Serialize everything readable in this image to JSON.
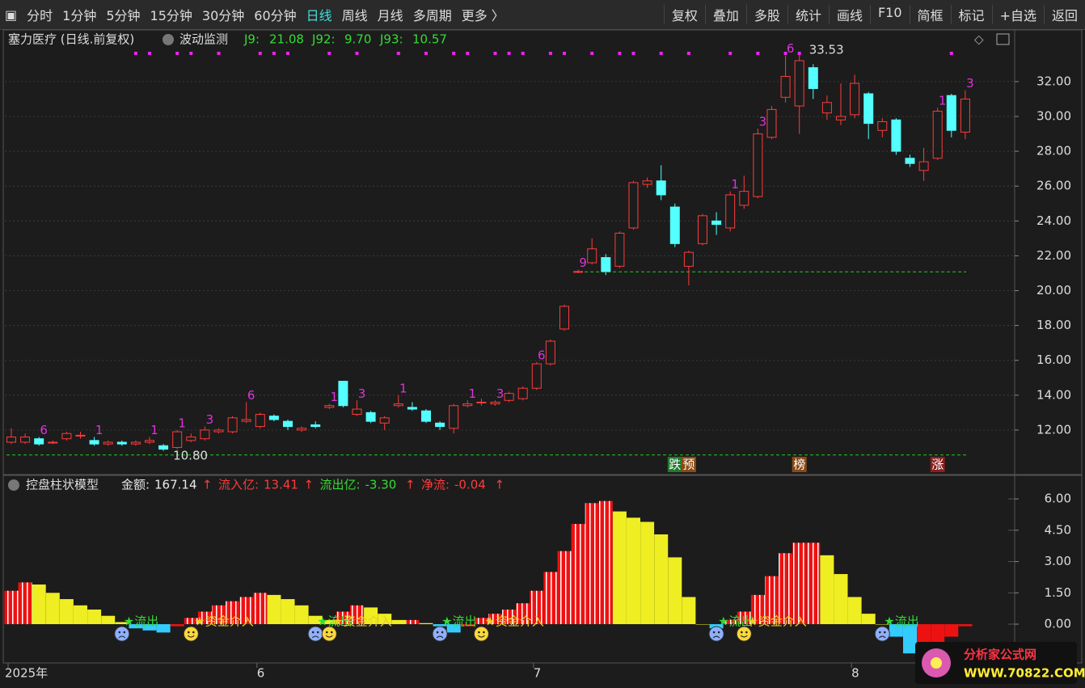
{
  "toolbar": {
    "left": [
      "分时",
      "1分钟",
      "5分钟",
      "15分钟",
      "30分钟",
      "60分钟",
      "日线",
      "周线",
      "月线",
      "多周期",
      "更多 〉"
    ],
    "active": "日线",
    "right": [
      "复权",
      "叠加",
      "多股",
      "统计",
      "画线",
      "F10",
      "简框",
      "标记",
      "+自选",
      "返回"
    ]
  },
  "chart_data": [
    {
      "type": "candlestick",
      "title": "塞力医疗 (日线.前复权)",
      "indicator": "波动监测",
      "indicators": [
        {
          "name": "J9:",
          "value": 21.08,
          "color": "#33dd33"
        },
        {
          "name": "J92:",
          "value": 9.7,
          "label": "9.70",
          "color": "#33dd33"
        },
        {
          "name": "J93:",
          "value": 10.57,
          "color": "#33dd33"
        }
      ],
      "categories": [
        "2025年",
        null,
        null,
        null,
        null,
        null,
        null,
        null,
        null,
        null,
        null,
        null,
        null,
        null,
        null,
        null,
        null,
        null,
        "6",
        null,
        null,
        null,
        null,
        null,
        null,
        null,
        null,
        null,
        null,
        null,
        null,
        null,
        null,
        null,
        null,
        null,
        null,
        null,
        "7",
        null,
        null,
        null,
        null,
        null,
        null,
        null,
        null,
        null,
        null,
        null,
        null,
        null,
        null,
        null,
        null,
        null,
        null,
        null,
        null,
        null,
        null,
        "8",
        null,
        null,
        null,
        null,
        null,
        null,
        null,
        null
      ],
      "open": [
        11.3,
        11.3,
        11.5,
        11.3,
        11.5,
        11.7,
        11.4,
        11.2,
        11.3,
        11.2,
        11.3,
        11.1,
        11.0,
        11.4,
        11.5,
        11.9,
        11.9,
        12.5,
        12.2,
        12.8,
        12.5,
        12.0,
        12.3,
        13.3,
        14.8,
        12.9,
        13.0,
        12.4,
        13.4,
        13.3,
        13.1,
        12.4,
        12.1,
        13.4,
        13.6,
        13.5,
        13.7,
        13.8,
        14.4,
        15.8,
        17.8,
        21.1,
        21.6,
        21.9,
        21.4,
        23.6,
        26.1,
        26.3,
        24.8,
        21.4,
        22.7,
        24.0,
        23.6,
        24.9,
        25.4,
        28.8,
        31.1,
        30.6,
        32.8,
        30.2,
        29.8,
        30.1,
        31.3,
        29.2,
        29.8,
        27.6,
        26.9,
        27.6,
        31.2,
        29.1
      ],
      "high": [
        12.1,
        11.8,
        11.6,
        11.4,
        11.9,
        11.9,
        11.6,
        11.4,
        11.4,
        11.4,
        11.6,
        11.2,
        12.0,
        11.8,
        12.2,
        12.1,
        12.8,
        13.6,
        13.0,
        12.9,
        12.6,
        12.2,
        12.5,
        13.5,
        14.8,
        13.7,
        13.1,
        12.8,
        14.0,
        13.6,
        13.2,
        12.5,
        13.5,
        13.7,
        13.8,
        13.7,
        14.2,
        14.5,
        15.9,
        17.2,
        19.2,
        21.2,
        23.0,
        22.1,
        23.4,
        26.3,
        26.5,
        27.2,
        25.0,
        22.3,
        24.4,
        24.5,
        25.7,
        26.6,
        29.3,
        30.6,
        33.5,
        33.53,
        33.0,
        31.2,
        31.9,
        32.4,
        31.4,
        29.9,
        29.9,
        27.8,
        28.2,
        30.5,
        31.3,
        31.5
      ],
      "low": [
        11.2,
        11.2,
        11.1,
        11.2,
        11.4,
        11.5,
        11.1,
        11.1,
        11.1,
        11.1,
        11.2,
        10.8,
        10.9,
        11.3,
        11.4,
        11.8,
        11.8,
        12.4,
        12.1,
        12.5,
        12.0,
        11.9,
        12.1,
        13.2,
        13.3,
        12.8,
        12.4,
        12.0,
        13.3,
        13.1,
        12.4,
        12.0,
        11.8,
        13.3,
        13.4,
        13.4,
        13.6,
        13.7,
        14.3,
        15.7,
        17.7,
        21.0,
        21.5,
        20.9,
        21.3,
        23.5,
        25.9,
        25.2,
        22.5,
        20.3,
        22.6,
        23.2,
        23.4,
        24.7,
        25.3,
        28.7,
        30.8,
        29.0,
        31.0,
        29.8,
        29.5,
        29.9,
        28.7,
        28.8,
        27.8,
        27.1,
        26.3,
        27.5,
        28.8,
        28.7
      ],
      "close": [
        11.6,
        11.6,
        11.2,
        11.3,
        11.8,
        11.7,
        11.2,
        11.3,
        11.2,
        11.3,
        11.4,
        10.9,
        11.9,
        11.6,
        12.0,
        12.0,
        12.7,
        12.6,
        12.9,
        12.6,
        12.2,
        12.1,
        12.2,
        13.4,
        13.4,
        13.2,
        12.5,
        12.7,
        13.5,
        13.2,
        12.5,
        12.2,
        13.4,
        13.5,
        13.6,
        13.6,
        14.1,
        14.4,
        15.8,
        17.1,
        19.1,
        21.1,
        22.4,
        21.1,
        23.3,
        26.2,
        26.3,
        25.5,
        22.7,
        22.2,
        24.3,
        23.8,
        25.5,
        25.7,
        29.0,
        30.4,
        32.3,
        33.2,
        31.6,
        30.8,
        30.0,
        31.9,
        29.6,
        29.7,
        28.0,
        27.3,
        27.4,
        30.3,
        29.2,
        31.0
      ],
      "up_color": "#ff3b3b",
      "down_color": "#54ffff",
      "wave_labels": [
        null,
        null,
        "6",
        null,
        null,
        null,
        "1",
        null,
        null,
        null,
        "1",
        null,
        "1",
        null,
        "3",
        null,
        null,
        "6",
        null,
        null,
        null,
        null,
        null,
        "1",
        null,
        "3",
        null,
        null,
        "1",
        null,
        null,
        null,
        null,
        "1",
        null,
        "3",
        null,
        null,
        "6",
        null,
        null,
        "9",
        null,
        null,
        null,
        null,
        null,
        null,
        null,
        null,
        null,
        null,
        "1",
        null,
        "3",
        null,
        "6",
        null,
        null,
        null,
        null,
        null,
        null,
        null,
        null,
        null,
        null,
        "1",
        null,
        "3"
      ],
      "top_signals": [
        9,
        10,
        12,
        13,
        15,
        18,
        19,
        20,
        23,
        25,
        28,
        30,
        32,
        33,
        35,
        36,
        37,
        39,
        40,
        42,
        44,
        45,
        47,
        49,
        52,
        54,
        56,
        57,
        68
      ],
      "extremes": [
        {
          "index": 11,
          "value": 10.8,
          "label": "10.80"
        },
        {
          "index": 57,
          "value": 33.53
        }
      ],
      "badges": [
        {
          "index": 48,
          "text": "跌",
          "color": "#1f7a2a"
        },
        {
          "index": 49,
          "text": "预",
          "color": "#8a4a14"
        },
        {
          "index": 57,
          "text": "榜",
          "color": "#8a4a14"
        },
        {
          "index": 67,
          "text": "涨",
          "color": "#8a1f1f"
        }
      ],
      "ylim": [
        9.49,
        34.92
      ],
      "yticks": [
        {
          "value": 12,
          "label": "12.00"
        },
        {
          "value": 14,
          "label": "14.00"
        },
        {
          "value": 16,
          "label": "16.00"
        },
        {
          "value": 18,
          "label": "18.00"
        },
        {
          "value": 20,
          "label": "20.00"
        },
        {
          "value": 22,
          "label": "22.00"
        },
        {
          "value": 24,
          "label": "24.00"
        },
        {
          "value": 26,
          "label": "26.00"
        },
        {
          "value": 28,
          "label": "28.00"
        },
        {
          "value": 30,
          "label": "30.00"
        },
        {
          "value": 32,
          "label": "32.00"
        }
      ],
      "grid": true
    },
    {
      "type": "bar",
      "title": "控盘柱状模型",
      "stats": [
        {
          "name": "金额:",
          "value": 167.14,
          "color": "#e8e8e8"
        },
        {
          "name": "流入亿:",
          "value": 13.41,
          "color": "#ff3b3b"
        },
        {
          "name": "流出亿:",
          "value": -3.3,
          "label": "-3.30",
          "color": "#33dd33"
        },
        {
          "name": "净流:",
          "value": -0.04,
          "color": "#ff3b3b"
        }
      ],
      "values": [
        1.6,
        2.0,
        1.9,
        1.5,
        1.2,
        0.9,
        0.7,
        0.4,
        0.1,
        -0.2,
        -0.3,
        -0.4,
        -0.1,
        0.3,
        0.6,
        0.9,
        1.1,
        1.3,
        1.5,
        1.4,
        1.2,
        0.9,
        0.4,
        0.2,
        0.6,
        0.9,
        0.8,
        0.5,
        0.2,
        0.2,
        0.05,
        -0.1,
        -0.4,
        -0.1,
        0.3,
        0.5,
        0.7,
        1.0,
        1.6,
        2.5,
        3.5,
        4.8,
        5.8,
        5.9,
        5.4,
        5.1,
        4.9,
        4.3,
        3.2,
        1.3,
        0.0,
        -0.2,
        0.2,
        0.6,
        1.4,
        2.3,
        3.4,
        3.9,
        3.9,
        3.3,
        2.4,
        1.3,
        0.5,
        0.0,
        -0.6,
        -1.4,
        -1.3,
        -0.9,
        -0.6,
        -0.1
      ],
      "rise_color": "#ee1111",
      "fall_color": "#eeee22",
      "neg_color": "#33ccff",
      "outflow_signals": [
        {
          "index": 8,
          "text": "★流出"
        },
        {
          "index": 22,
          "text": "★流出"
        },
        {
          "index": 31,
          "text": "★流出"
        },
        {
          "index": 51,
          "text": "★流出"
        },
        {
          "index": 63,
          "text": "★流出"
        }
      ],
      "inflow_signals": [
        {
          "index": 13,
          "text": "★资金介入"
        },
        {
          "index": 23,
          "text": "★资金介入"
        },
        {
          "index": 34,
          "text": "★资金介入"
        },
        {
          "index": 53,
          "text": "★资金介入"
        }
      ],
      "ylim": [
        -1.78,
        7.05
      ],
      "yticks": [
        {
          "value": 0,
          "label": "0.00"
        },
        {
          "value": 1.5,
          "label": "1.50"
        },
        {
          "value": 3,
          "label": "3.00"
        },
        {
          "value": 4.5,
          "label": "4.50"
        },
        {
          "value": 6,
          "label": "6.00"
        }
      ]
    }
  ],
  "watermark": {
    "name": "分析家公式网",
    "url": "WWW.70822.COM"
  }
}
